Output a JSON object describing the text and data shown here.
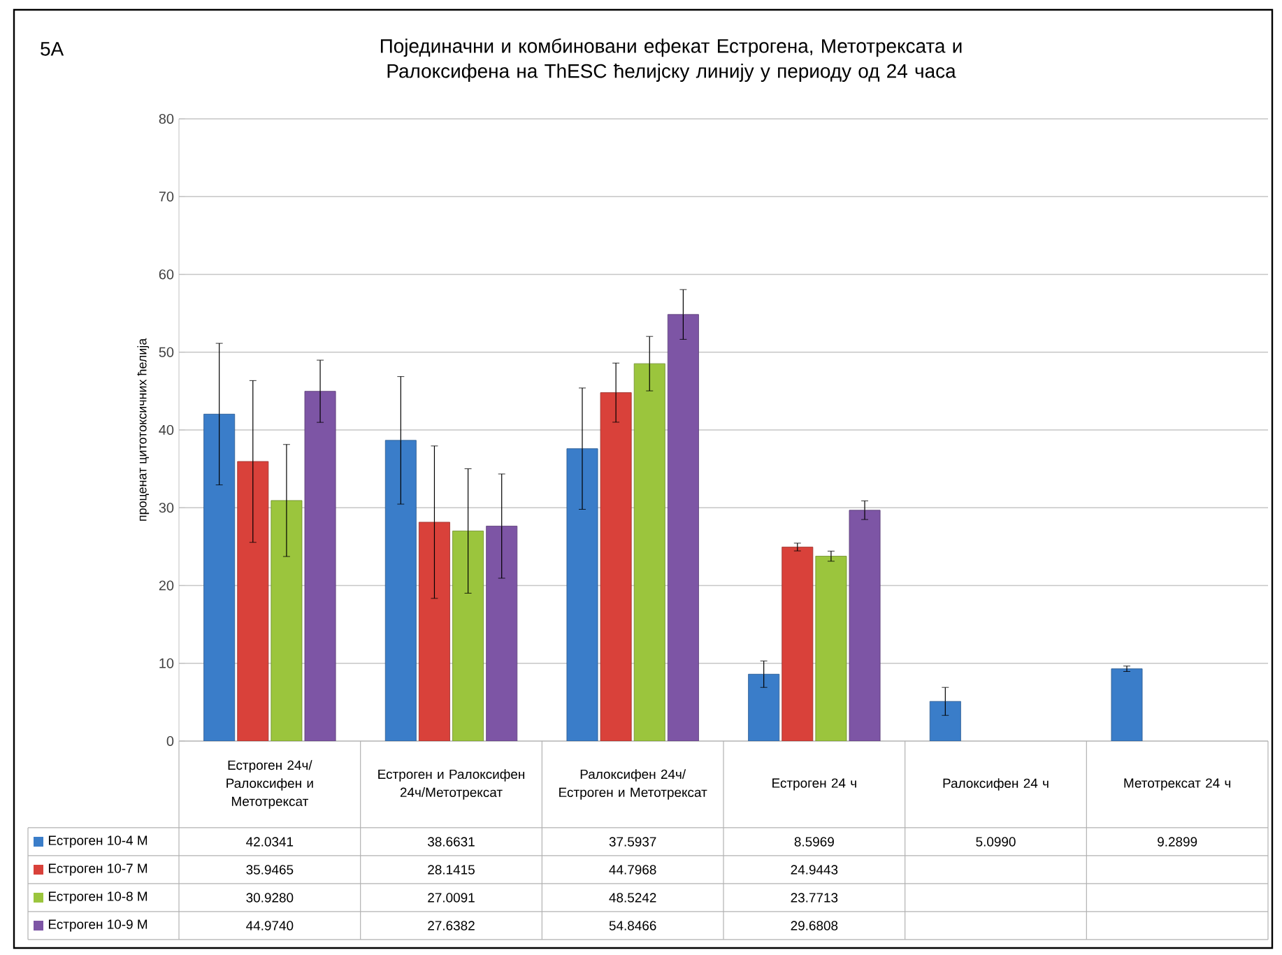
{
  "chart_data": {
    "type": "bar",
    "title": "Појединачни и комбиновани ефекат Естрогена, Метотрексата и Ралоксифена на ThESC ћелијску линију у периоду од 24 часа",
    "ylabel": "проценат цитотоксичних ћелија",
    "annotations": [
      "5A"
    ],
    "categories": [
      "Естроген 24ч/ Ралоксифен и Метотрексат",
      "Естроген и Ралоксифен 24ч/Метотрексат",
      "Ралоксифен 24ч/ Естроген и Метотрексат",
      "Естроген 24 ч",
      "Ралоксифен 24 ч",
      "Метотрексат 24 ч"
    ],
    "ylim": [
      0,
      80
    ],
    "yticks": [
      0,
      10,
      20,
      30,
      40,
      50,
      60,
      70,
      80
    ],
    "grid": "y",
    "legend": "bottom",
    "series": [
      {
        "name": "Естроген 10-4 М",
        "color": "#3a7dc9",
        "values": [
          42.0341,
          38.6631,
          37.5937,
          8.5969,
          5.099,
          9.2899
        ],
        "value_labels": [
          "42.0341",
          "38.6631",
          "37.5937",
          "8.5969",
          "5.0990",
          "9.2899"
        ],
        "errors": [
          9.1,
          8.2,
          7.8,
          1.7,
          1.8,
          0.35
        ]
      },
      {
        "name": "Естроген 10-7 М",
        "color": "#d9413a",
        "values": [
          35.9465,
          28.1415,
          44.7968,
          24.9443,
          null,
          null
        ],
        "value_labels": [
          "35.9465",
          "28.1415",
          "44.7968",
          "24.9443",
          null,
          null
        ],
        "errors": [
          10.4,
          9.8,
          3.8,
          0.5,
          null,
          null
        ]
      },
      {
        "name": "Естроген 10-8 М",
        "color": "#9bc53d",
        "values": [
          30.928,
          27.0091,
          48.5242,
          23.7713,
          null,
          null
        ],
        "value_labels": [
          "30.9280",
          "27.0091",
          "48.5242",
          "23.7713",
          null,
          null
        ],
        "errors": [
          7.2,
          8,
          3.5,
          0.65,
          null,
          null
        ]
      },
      {
        "name": "Естроген 10-9 М",
        "color": "#7d55a5",
        "values": [
          44.974,
          27.6382,
          54.8466,
          29.6808,
          null,
          null
        ],
        "value_labels": [
          "44.9740",
          "27.6382",
          "54.8466",
          "29.6808",
          null,
          null
        ],
        "errors": [
          4,
          6.7,
          3.2,
          1.2,
          null,
          null
        ]
      }
    ]
  }
}
